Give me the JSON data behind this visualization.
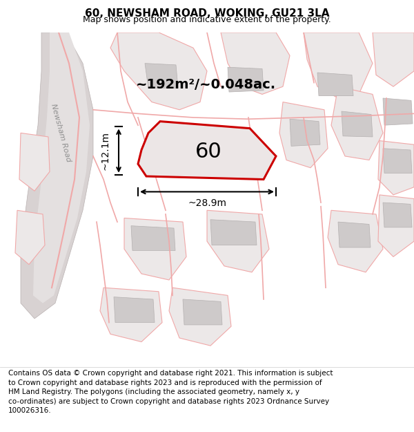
{
  "title": "60, NEWSHAM ROAD, WOKING, GU21 3LA",
  "subtitle": "Map shows position and indicative extent of the property.",
  "footer_text": "Contains OS data © Crown copyright and database right 2021. This information is subject\nto Crown copyright and database rights 2023 and is reproduced with the permission of\nHM Land Registry. The polygons (including the associated geometry, namely x, y\nco-ordinates) are subject to Crown copyright and database rights 2023 Ordnance Survey\n100026316.",
  "map_bg": "#f2eeee",
  "property_fill": "#e8e2e2",
  "property_edge": "#cc0000",
  "road_color_light": "#f0a8a8",
  "label_number": "60",
  "area_text": "~192m²/~0.048ac.",
  "dim_width": "~28.9m",
  "dim_height": "~12.1m",
  "title_fontsize": 11,
  "subtitle_fontsize": 9,
  "footer_fontsize": 7.5,
  "label_fontsize": 22,
  "area_fontsize": 14,
  "dim_fontsize": 10,
  "road_label": "Newsham Road",
  "road_label_fontsize": 8
}
